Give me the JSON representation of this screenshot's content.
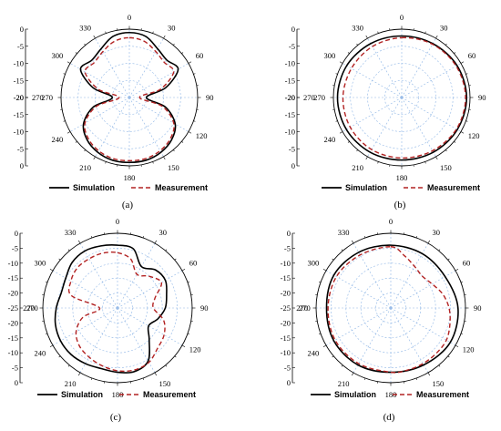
{
  "chart_data": [
    {
      "type": "polar-line",
      "caption": "(a)",
      "r_ticks_upper": [
        "0",
        "-5",
        "-10",
        "-15",
        "-20"
      ],
      "r_ticks_lower": [
        "-20",
        "-15",
        "-10",
        "-5",
        "0"
      ],
      "center_label": "270",
      "angle_labels": [
        "0",
        "30",
        "60",
        "90",
        "120",
        "150",
        "180",
        "210",
        "240",
        "270",
        "300",
        "330"
      ],
      "r_range": [
        -20,
        0
      ],
      "series": [
        {
          "name": "Simulation",
          "color": "#000000",
          "dash": "solid",
          "theta": [
            0,
            15,
            30,
            45,
            60,
            75,
            90,
            105,
            120,
            135,
            150,
            165,
            180,
            195,
            210,
            225,
            240,
            255,
            270,
            285,
            300,
            315,
            330,
            345,
            360
          ],
          "values": [
            -1.0,
            -1.5,
            -3.5,
            -4.5,
            -3.5,
            -9.0,
            -15.0,
            -9.0,
            -4.5,
            -2.5,
            -1.5,
            -1.0,
            -1.0,
            -1.0,
            -1.5,
            -2.5,
            -4.5,
            -9.0,
            -15.0,
            -9.0,
            -3.5,
            -4.5,
            -3.5,
            -1.5,
            -1.0
          ]
        },
        {
          "name": "Measurement",
          "color": "#b22222",
          "dash": "dashed",
          "theta": [
            0,
            15,
            30,
            45,
            60,
            75,
            90,
            105,
            120,
            135,
            150,
            165,
            180,
            195,
            210,
            225,
            240,
            255,
            270,
            285,
            300,
            315,
            330,
            345,
            360
          ],
          "values": [
            -2.5,
            -3.0,
            -4.5,
            -5.5,
            -5.0,
            -10.5,
            -17.0,
            -10.0,
            -5.0,
            -3.0,
            -2.0,
            -1.5,
            -1.5,
            -1.5,
            -2.0,
            -3.0,
            -5.0,
            -10.0,
            -17.0,
            -10.5,
            -5.0,
            -5.5,
            -4.5,
            -3.0,
            -2.5
          ]
        }
      ],
      "legend": [
        "Simulation",
        "Measurement"
      ]
    },
    {
      "type": "polar-line",
      "caption": "(b)",
      "r_ticks_upper": [
        "0",
        "-5",
        "-10",
        "-15",
        "-20"
      ],
      "r_ticks_lower": [
        "-20",
        "-15",
        "-10",
        "-5",
        "0"
      ],
      "center_label": "270",
      "angle_labels": [
        "0",
        "30",
        "60",
        "90",
        "120",
        "150",
        "180",
        "210",
        "240",
        "270",
        "300",
        "330"
      ],
      "r_range": [
        -20,
        0
      ],
      "series": [
        {
          "name": "Simulation",
          "color": "#000000",
          "dash": "solid",
          "theta": [
            0,
            30,
            60,
            90,
            120,
            150,
            180,
            210,
            240,
            270,
            300,
            330,
            360
          ],
          "values": [
            -2.0,
            -1.8,
            -1.3,
            -1.0,
            -1.2,
            -1.5,
            -1.7,
            -1.5,
            -1.3,
            -1.2,
            -1.4,
            -1.8,
            -2.0
          ]
        },
        {
          "name": "Measurement",
          "color": "#b22222",
          "dash": "dashed",
          "theta": [
            0,
            30,
            60,
            90,
            120,
            150,
            180,
            210,
            240,
            270,
            300,
            330,
            360
          ],
          "values": [
            -2.5,
            -2.0,
            -1.6,
            -1.3,
            -1.5,
            -2.0,
            -2.3,
            -2.4,
            -2.6,
            -2.8,
            -3.0,
            -2.8,
            -2.5
          ]
        }
      ],
      "legend": [
        "Simulation",
        "Measurement"
      ]
    },
    {
      "type": "polar-line",
      "caption": "(c)",
      "r_ticks_upper": [
        "0",
        "-5",
        "-10",
        "-15",
        "-20",
        "-25"
      ],
      "r_ticks_lower": [
        "-20",
        "-15",
        "-10",
        "-5",
        "0"
      ],
      "center_label": "270",
      "angle_labels": [
        "0",
        "30",
        "60",
        "90",
        "120",
        "150",
        "180",
        "210",
        "240",
        "270",
        "300",
        "330"
      ],
      "r_range": [
        -25,
        0
      ],
      "series": [
        {
          "name": "Simulation",
          "color": "#000000",
          "dash": "solid",
          "theta": [
            0,
            15,
            30,
            45,
            60,
            75,
            90,
            105,
            120,
            135,
            150,
            165,
            180,
            195,
            210,
            225,
            240,
            255,
            270,
            285,
            300,
            315,
            330,
            345,
            360
          ],
          "values": [
            -4.0,
            -4.5,
            -9.0,
            -7.0,
            -6.5,
            -8.0,
            -9.0,
            -11.0,
            -13.0,
            -10.0,
            -4.5,
            -3.0,
            -3.5,
            -4.0,
            -3.5,
            -3.0,
            -3.0,
            -3.5,
            -4.5,
            -5.5,
            -5.0,
            -3.5,
            -3.0,
            -3.5,
            -4.0
          ]
        },
        {
          "name": "Measurement",
          "color": "#b22222",
          "dash": "dashed",
          "theta": [
            0,
            15,
            30,
            45,
            60,
            75,
            90,
            105,
            120,
            135,
            150,
            165,
            180,
            195,
            210,
            225,
            240,
            255,
            270,
            285,
            300,
            315,
            330,
            345,
            360
          ],
          "values": [
            -6.5,
            -8.0,
            -12.0,
            -10.0,
            -8.0,
            -12.0,
            -13.0,
            -9.0,
            -7.0,
            -6.0,
            -4.0,
            -3.5,
            -4.0,
            -5.0,
            -6.0,
            -7.0,
            -9.0,
            -13.0,
            -19.0,
            -9.0,
            -7.0,
            -6.0,
            -6.0,
            -6.0,
            -6.5
          ]
        }
      ],
      "legend": [
        "Simulation",
        "Measurement"
      ]
    },
    {
      "type": "polar-line",
      "caption": "(d)",
      "r_ticks_upper": [
        "0",
        "-5",
        "-10",
        "-15",
        "-20",
        "-25"
      ],
      "r_ticks_lower": [
        "-20",
        "-15",
        "-10",
        "-5",
        "0"
      ],
      "center_label": "270",
      "angle_labels": [
        "0",
        "30",
        "60",
        "90",
        "120",
        "150",
        "180",
        "210",
        "240",
        "270",
        "300",
        "330"
      ],
      "r_range": [
        -25,
        0
      ],
      "series": [
        {
          "name": "Simulation",
          "color": "#000000",
          "dash": "solid",
          "theta": [
            0,
            30,
            60,
            90,
            120,
            150,
            180,
            210,
            240,
            270,
            300,
            330,
            360
          ],
          "values": [
            -4.0,
            -4.0,
            -4.0,
            -2.5,
            -2.0,
            -3.0,
            -3.5,
            -3.0,
            -3.0,
            -3.5,
            -3.0,
            -3.5,
            -4.0
          ]
        },
        {
          "name": "Measurement",
          "color": "#b22222",
          "dash": "dashed",
          "theta": [
            0,
            15,
            30,
            45,
            60,
            75,
            90,
            105,
            120,
            135,
            150,
            165,
            180,
            210,
            240,
            270,
            300,
            330,
            360
          ],
          "values": [
            -4.5,
            -7.0,
            -9.0,
            -10.0,
            -9.0,
            -7.0,
            -5.5,
            -4.5,
            -3.5,
            -3.5,
            -3.5,
            -3.5,
            -3.5,
            -3.5,
            -3.5,
            -4.0,
            -4.0,
            -4.5,
            -4.5
          ]
        }
      ],
      "legend": [
        "Simulation",
        "Measurement"
      ]
    }
  ]
}
